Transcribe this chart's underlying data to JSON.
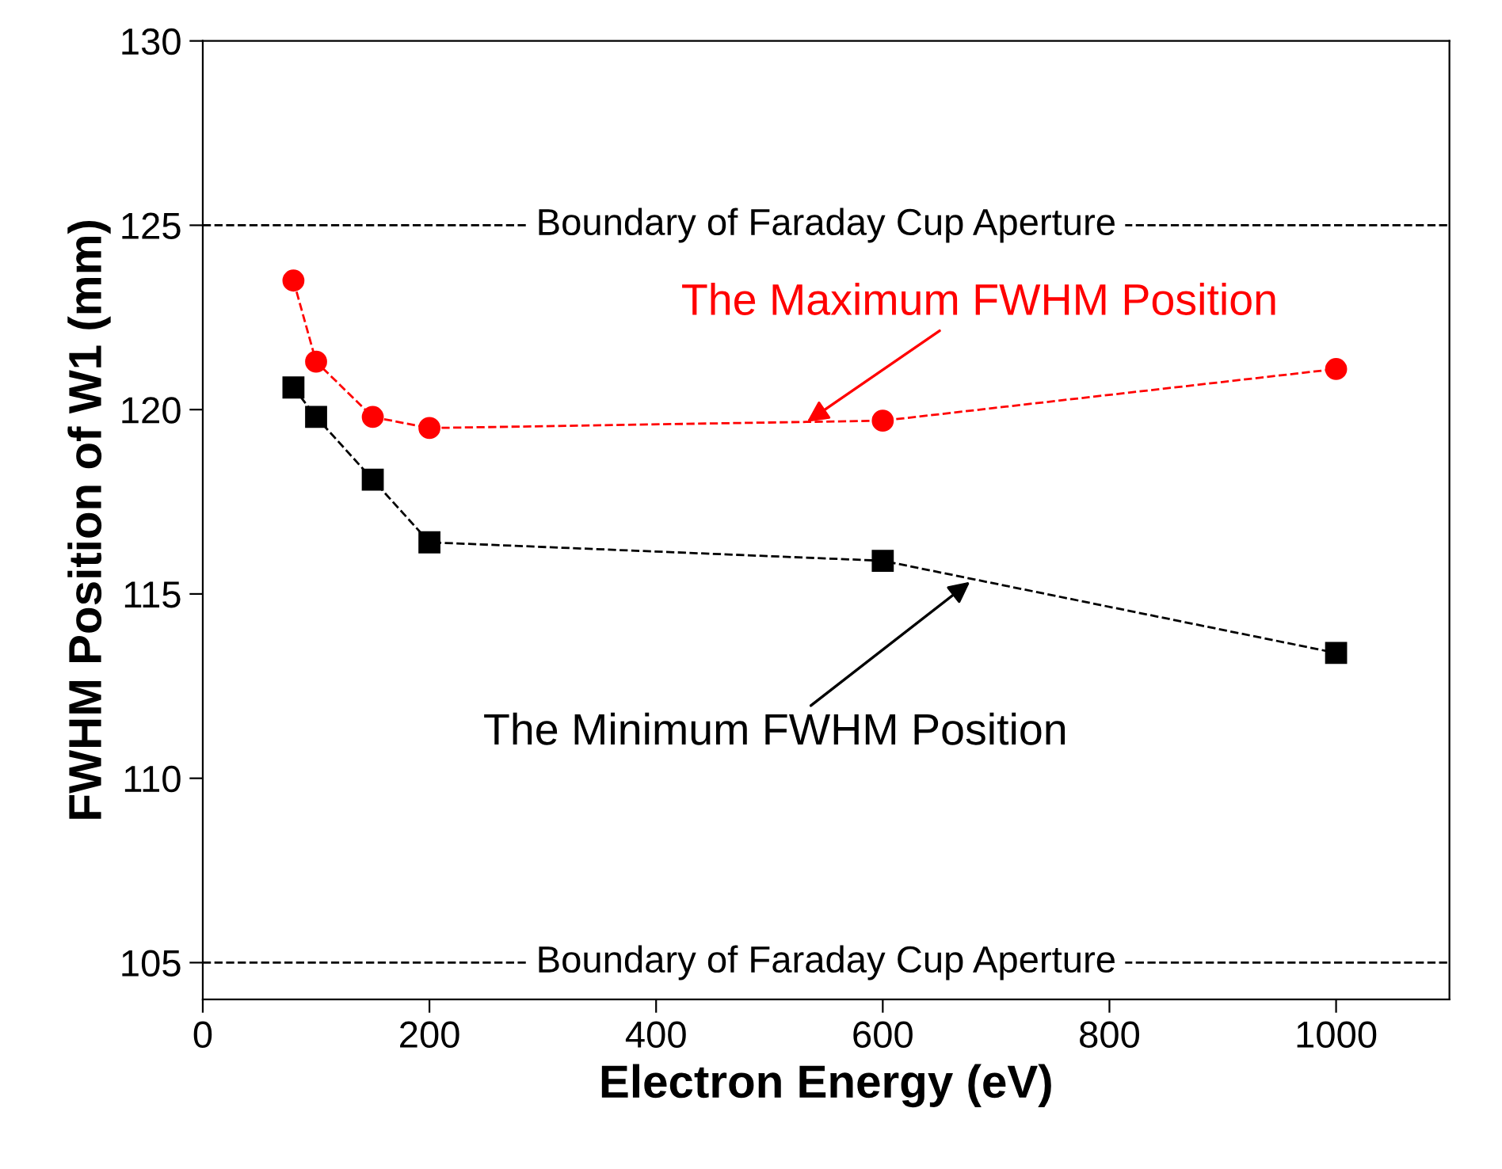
{
  "chart_data": {
    "type": "line",
    "xlabel": "Electron Energy (eV)",
    "ylabel": "FWHM Position of W1 (mm)",
    "x": [
      80,
      100,
      150,
      200,
      600,
      1000
    ],
    "series": [
      {
        "color": "#ff0000",
        "marker": "circle",
        "line_style": "dashed",
        "values": [
          123.5,
          121.3,
          119.8,
          119.5,
          119.7,
          121.1
        ]
      },
      {
        "color": "#000000",
        "marker": "square",
        "line_style": "dashed",
        "values": [
          120.6,
          119.8,
          118.1,
          116.4,
          115.9,
          113.4
        ]
      }
    ],
    "annotations": [
      {
        "text": "The Maximum FWHM Position",
        "x": 530,
        "y": 119.6
      },
      {
        "text": "The Minimum FWHM Position",
        "x": 680,
        "y": 115.4
      }
    ],
    "ref_lines": [
      {
        "axis": "y",
        "value": 125,
        "label": "Boundary of Faraday Cup Aperture",
        "color": "#000000",
        "line_style": "dashed"
      },
      {
        "axis": "y",
        "value": 105,
        "label": "Boundary of Faraday Cup Aperture",
        "color": "#000000",
        "line_style": "dashed"
      }
    ],
    "xlim": [
      0,
      1100
    ],
    "ylim": [
      104,
      130
    ],
    "xticks": [
      0,
      200,
      400,
      600,
      800,
      1000
    ],
    "yticks": [
      105,
      110,
      115,
      120,
      125,
      130
    ],
    "grid": false,
    "legend": false
  }
}
